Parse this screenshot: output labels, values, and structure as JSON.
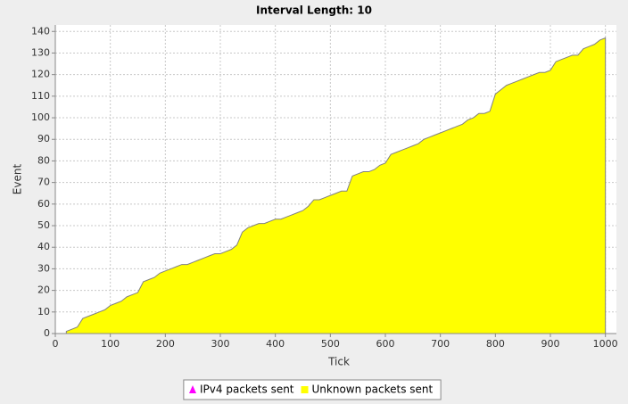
{
  "chart_data": {
    "type": "area",
    "title": "Interval Length: 10",
    "x_label": "Tick",
    "y_label": "Event",
    "x": [
      20,
      30,
      40,
      50,
      60,
      70,
      80,
      90,
      100,
      110,
      120,
      130,
      140,
      150,
      160,
      170,
      180,
      190,
      200,
      210,
      220,
      230,
      240,
      250,
      260,
      270,
      280,
      290,
      300,
      310,
      320,
      330,
      340,
      350,
      360,
      370,
      380,
      390,
      400,
      410,
      420,
      430,
      440,
      450,
      460,
      470,
      480,
      490,
      500,
      510,
      520,
      530,
      540,
      550,
      560,
      570,
      580,
      590,
      600,
      610,
      620,
      630,
      640,
      650,
      660,
      670,
      680,
      690,
      700,
      710,
      720,
      730,
      740,
      750,
      760,
      770,
      780,
      790,
      800,
      810,
      820,
      830,
      840,
      850,
      860,
      870,
      880,
      890,
      900,
      910,
      920,
      930,
      940,
      950,
      960,
      970,
      980,
      990,
      1000
    ],
    "series": [
      {
        "name": "IPv4 packets sent",
        "color": "#ff00ff",
        "marker": "triangle",
        "values": [
          null,
          null,
          null,
          null,
          null,
          null,
          null,
          null,
          null,
          null,
          null,
          null,
          null,
          null,
          null,
          null,
          null,
          null,
          null,
          null,
          null,
          null,
          null,
          null,
          null,
          null,
          null,
          null,
          null,
          null,
          null,
          null,
          null,
          null,
          null,
          null,
          null,
          null,
          null,
          null,
          null,
          null,
          null,
          null,
          null,
          null,
          null,
          null,
          null,
          null,
          null,
          null,
          null,
          null,
          null,
          null,
          null,
          null,
          null,
          null,
          null,
          null,
          null,
          null,
          null,
          null,
          null,
          null,
          null,
          null,
          null,
          null,
          null,
          null,
          null,
          null,
          null,
          null,
          null,
          null,
          null,
          null,
          null,
          null,
          null,
          null,
          null,
          null,
          null,
          null,
          null,
          null,
          null,
          null,
          null,
          null,
          null,
          null,
          null
        ]
      },
      {
        "name": "Unknown packets sent",
        "color": "#ffff00",
        "marker": "square",
        "values": [
          1,
          2,
          3,
          7,
          8,
          9,
          10,
          11,
          13,
          14,
          15,
          17,
          18,
          19,
          24,
          25,
          26,
          28,
          29,
          30,
          31,
          32,
          32,
          33,
          34,
          35,
          36,
          37,
          37,
          38,
          39,
          41,
          47,
          49,
          50,
          51,
          51,
          52,
          53,
          53,
          54,
          55,
          56,
          57,
          59,
          62,
          62,
          63,
          64,
          65,
          66,
          66,
          73,
          74,
          75,
          75,
          76,
          78,
          79,
          83,
          84,
          85,
          86,
          87,
          88,
          90,
          91,
          92,
          93,
          94,
          95,
          96,
          97,
          99,
          100,
          102,
          102,
          103,
          111,
          113,
          115,
          116,
          117,
          118,
          119,
          120,
          121,
          121,
          122,
          126,
          127,
          128,
          129,
          129,
          132,
          133,
          134,
          136,
          137
        ]
      }
    ],
    "xlim": [
      0,
      1020
    ],
    "ylim": [
      0,
      143
    ],
    "xticks": [
      0,
      100,
      200,
      300,
      400,
      500,
      600,
      700,
      800,
      900,
      1000
    ],
    "yticks": [
      0,
      10,
      20,
      30,
      40,
      50,
      60,
      70,
      80,
      90,
      100,
      110,
      120,
      130,
      140
    ],
    "grid": true
  }
}
